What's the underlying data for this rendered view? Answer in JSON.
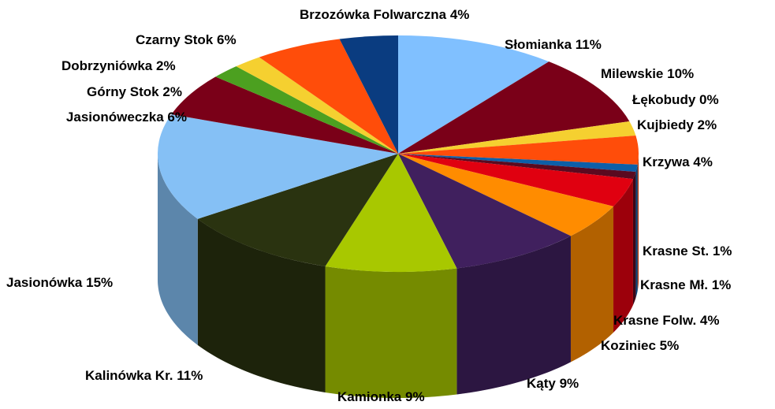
{
  "chart_data": {
    "type": "pie",
    "categories": [
      "Słomianka",
      "Milewskie",
      "Łękobudy",
      "Kujbiedy",
      "Krzywa",
      "Krasne St.",
      "Krasne Mł.",
      "Krasne Folw.",
      "Koziniec",
      "Kąty",
      "Kamionka",
      "Kalinówka Kr.",
      "Jasionówka",
      "Jasionóweczka",
      "Górny Stok",
      "Dobrzyniówka",
      "Czarny Stok",
      "Brzozówka Folwarczna"
    ],
    "values": [
      11,
      10,
      0,
      2,
      4,
      1,
      1,
      4,
      5,
      9,
      9,
      11,
      15,
      6,
      2,
      2,
      6,
      4
    ],
    "value_labels": [
      "11%",
      "10%",
      "0%",
      "2%",
      "4%",
      "1%",
      "1%",
      "4%",
      "5%",
      "9%",
      "9%",
      "11%",
      "15%",
      "6%",
      "2%",
      "2%",
      "6%",
      "4%"
    ],
    "colors": [
      "#80c0ff",
      "#7a0018",
      "#c0c0c0",
      "#f5d030",
      "#ff4d0a",
      "#0d5fa8",
      "#5a0a20",
      "#e00010",
      "#ff8c00",
      "#40205e",
      "#a8c800",
      "#2a3310",
      "#85c0f5",
      "#7a0018",
      "#4ca020",
      "#f5d030",
      "#ff4d0a",
      "#0a3c80"
    ]
  }
}
